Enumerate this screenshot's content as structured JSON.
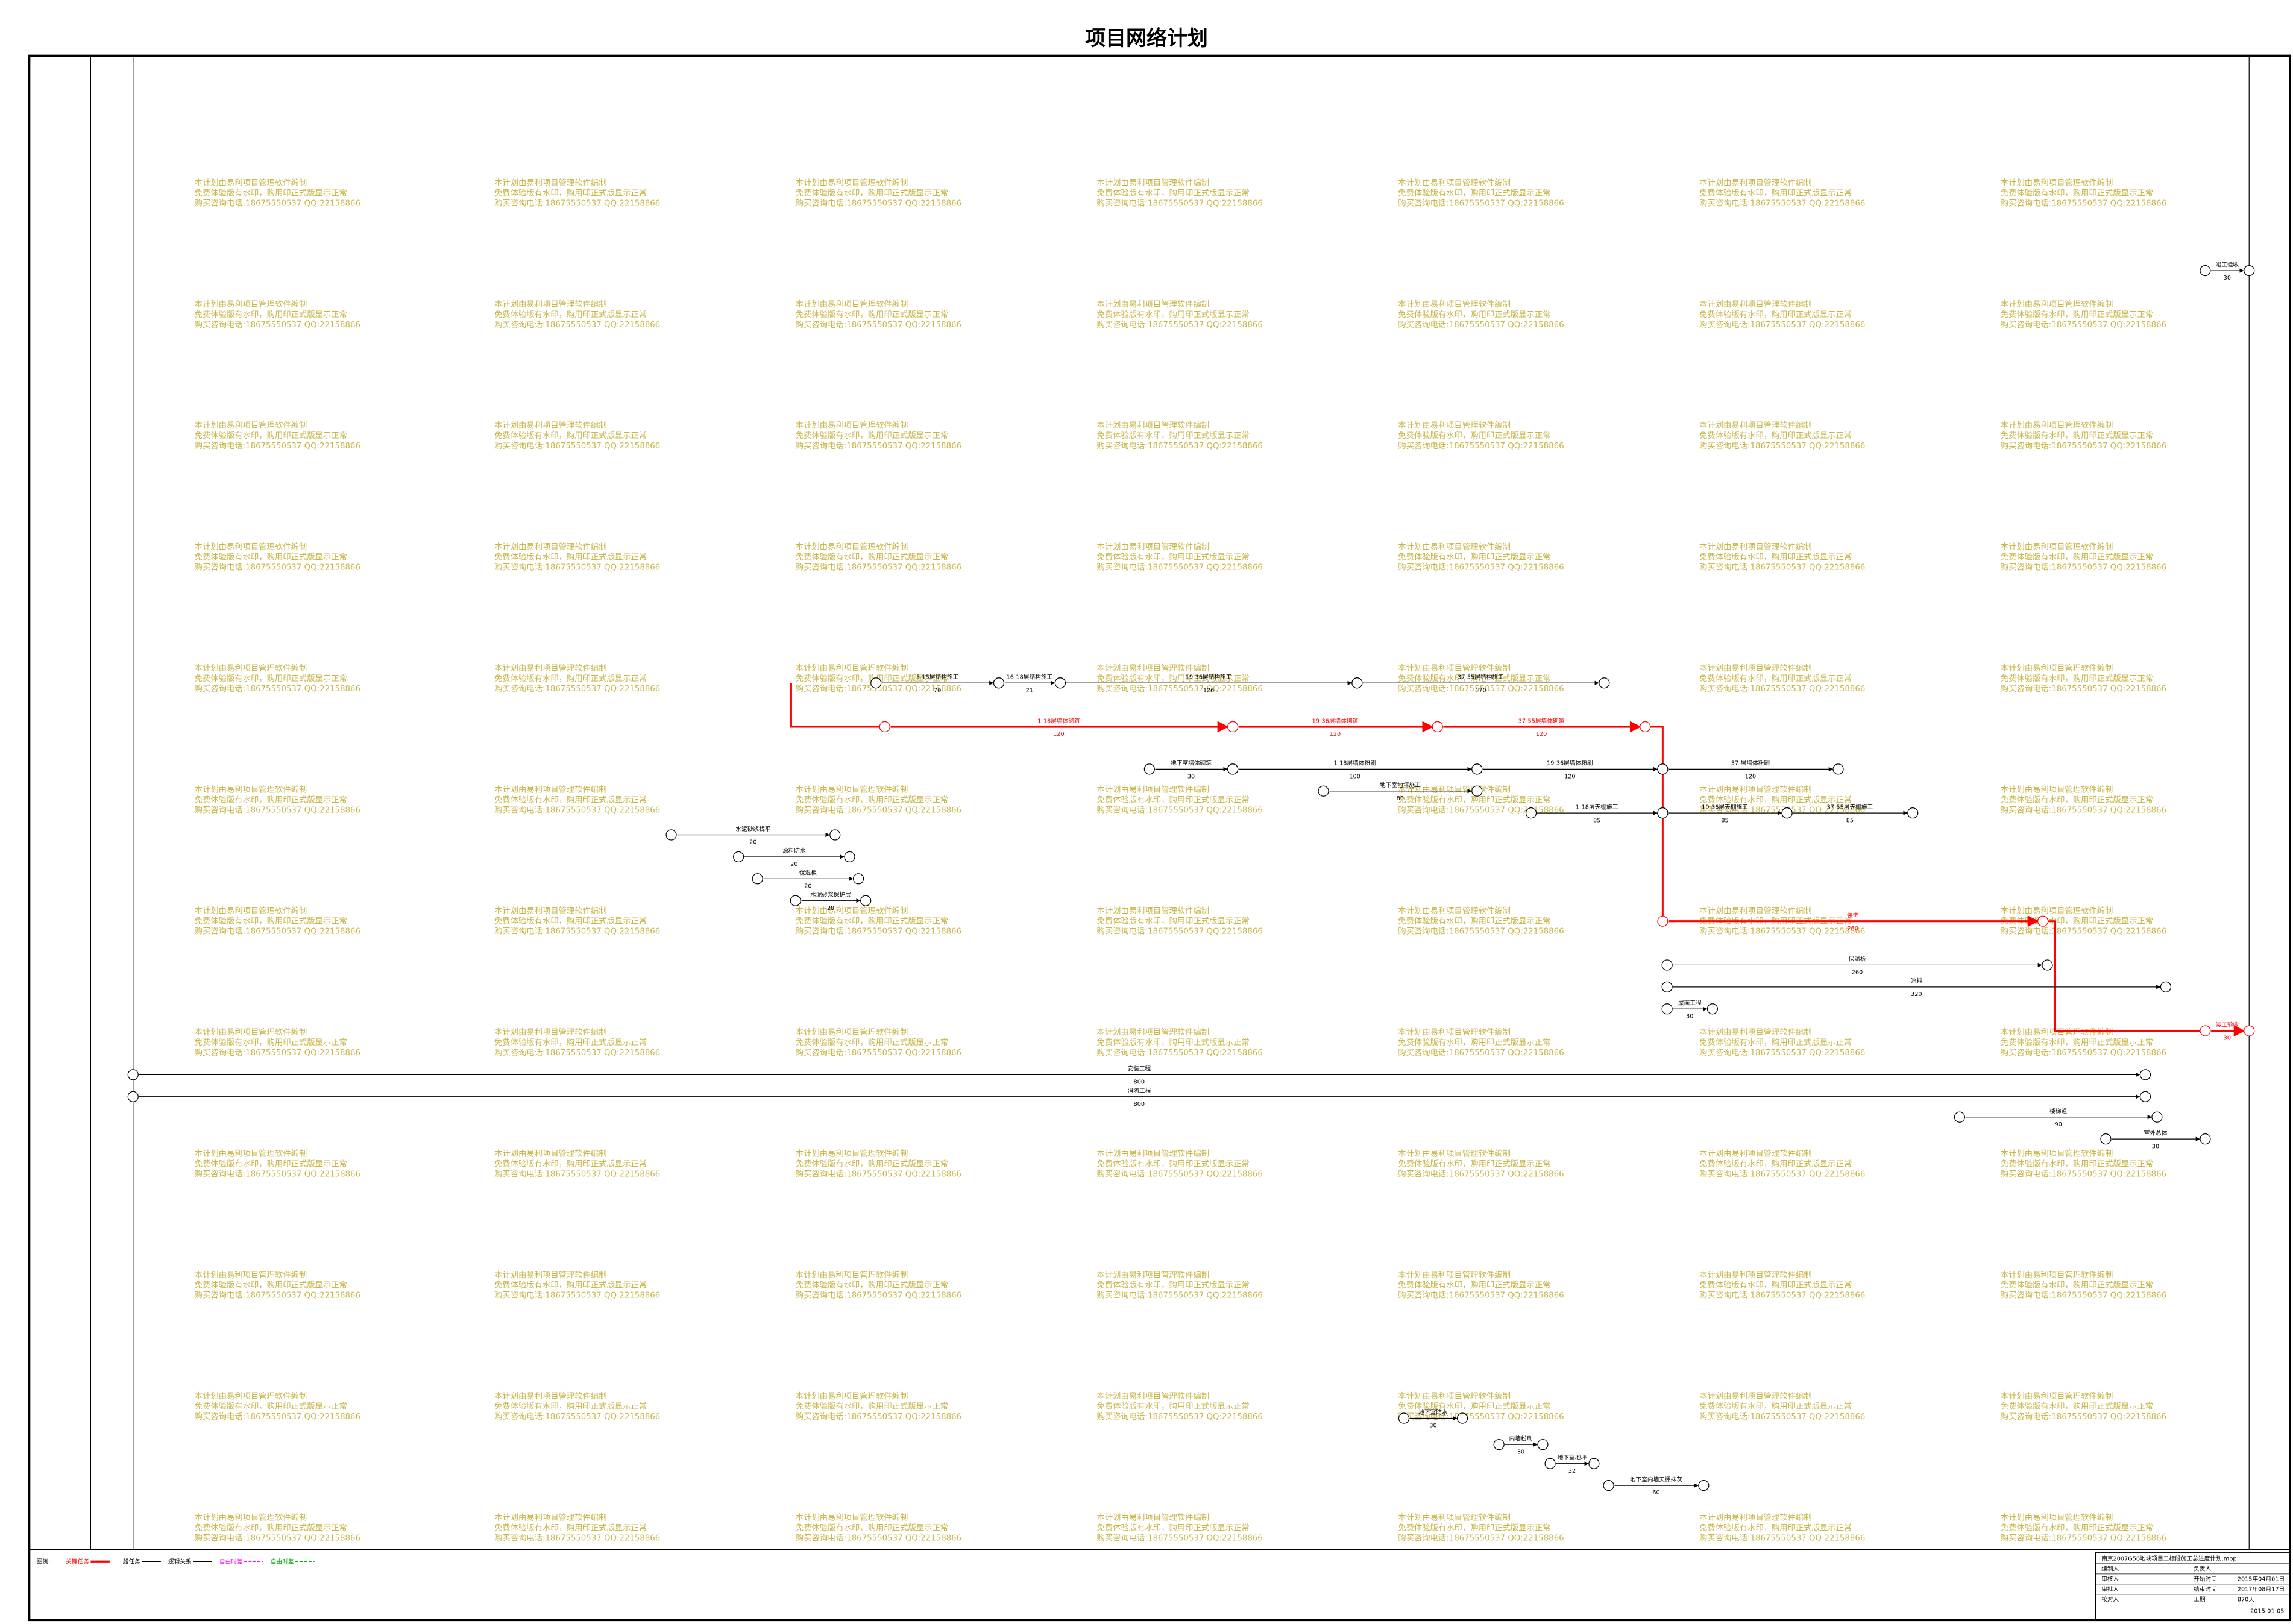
{
  "title": "项目网络计划",
  "watermark": [
    "本计划由易利项目管理软件编制",
    "免费体验版有水印，购用印正式版显示正常",
    "购买咨询电话:18675550537 QQ:22158866"
  ],
  "tasks": [
    {
      "name": "5-15层结构施工",
      "duration": "70",
      "critical": false
    },
    {
      "name": "16-18层结构施工",
      "duration": "21",
      "critical": false
    },
    {
      "name": "19-36层结构施工",
      "duration": "126",
      "critical": false
    },
    {
      "name": "37-55层结构施工",
      "duration": "170",
      "critical": false
    },
    {
      "name": "1-18层墙体砌筑",
      "duration": "120",
      "critical": true
    },
    {
      "name": "19-36层墙体砌筑",
      "duration": "120",
      "critical": true
    },
    {
      "name": "37-55层墙体砌筑",
      "duration": "120",
      "critical": true
    },
    {
      "name": "地下室墙体砌筑",
      "duration": "30",
      "critical": false
    },
    {
      "name": "1-18层墙体粉刷",
      "duration": "100",
      "critical": false
    },
    {
      "name": "19-36层墙体粉刷",
      "duration": "120",
      "critical": false
    },
    {
      "name": "37-层墙体粉刷",
      "duration": "120",
      "critical": false
    },
    {
      "name": "地下室地坪施工",
      "duration": "80",
      "critical": false
    },
    {
      "name": "1-18层天棚施工",
      "duration": "85",
      "critical": false
    },
    {
      "name": "19-36层天棚施工",
      "duration": "85",
      "critical": false
    },
    {
      "name": "37-55层天棚施工",
      "duration": "85",
      "critical": false
    },
    {
      "name": "水泥砂浆找平",
      "duration": "20",
      "critical": false
    },
    {
      "name": "涂料防水",
      "duration": "20",
      "critical": false
    },
    {
      "name": "保温板",
      "duration": "20",
      "critical": false
    },
    {
      "name": "水泥砂浆保护层",
      "duration": "20",
      "critical": false
    },
    {
      "name": "装饰",
      "duration": "260",
      "critical": true
    },
    {
      "name": "保温板",
      "duration": "260",
      "critical": false
    },
    {
      "name": "涂料",
      "duration": "320",
      "critical": false
    },
    {
      "name": "屋面工程",
      "duration": "30",
      "critical": false
    },
    {
      "name": "安装工程",
      "duration": "800",
      "critical": false
    },
    {
      "name": "消防工程",
      "duration": "800",
      "critical": false
    },
    {
      "name": "楼梯道",
      "duration": "90",
      "critical": false
    },
    {
      "name": "室外总体",
      "duration": "30",
      "critical": false
    },
    {
      "name": "地下室防水",
      "duration": "30",
      "critical": false
    },
    {
      "name": "内墙粉刷",
      "duration": "30",
      "critical": false
    },
    {
      "name": "地下室地坪",
      "duration": "32",
      "critical": false
    },
    {
      "name": "地下室内墙天棚抹灰",
      "duration": "60",
      "critical": false
    },
    {
      "name": "竣工验收",
      "duration": "30",
      "critical": false
    },
    {
      "name": "竣工验收",
      "duration": "30",
      "critical": true
    }
  ],
  "legend": {
    "label": "图例:",
    "items": [
      {
        "name": "关键任务",
        "color": "#ff0000"
      },
      {
        "name": "一般任务",
        "color": "#000000"
      },
      {
        "name": "逻辑关系",
        "color": "#000000"
      },
      {
        "name": "自由时差",
        "color": "#ff00ff"
      },
      {
        "name": "自由时差",
        "color": "#00aa00"
      }
    ]
  },
  "info": {
    "file": "南京2007G56地块项目二标段施工总进度计划.mpp",
    "rows": [
      [
        "编制人",
        "负责人",
        ""
      ],
      [
        "审核人",
        "开始时间",
        "2015年04月01日"
      ],
      [
        "审批人",
        "结束时间",
        "2017年08月17日"
      ],
      [
        "校对人",
        "工期",
        "870天"
      ]
    ],
    "date": "2015-01-05"
  }
}
